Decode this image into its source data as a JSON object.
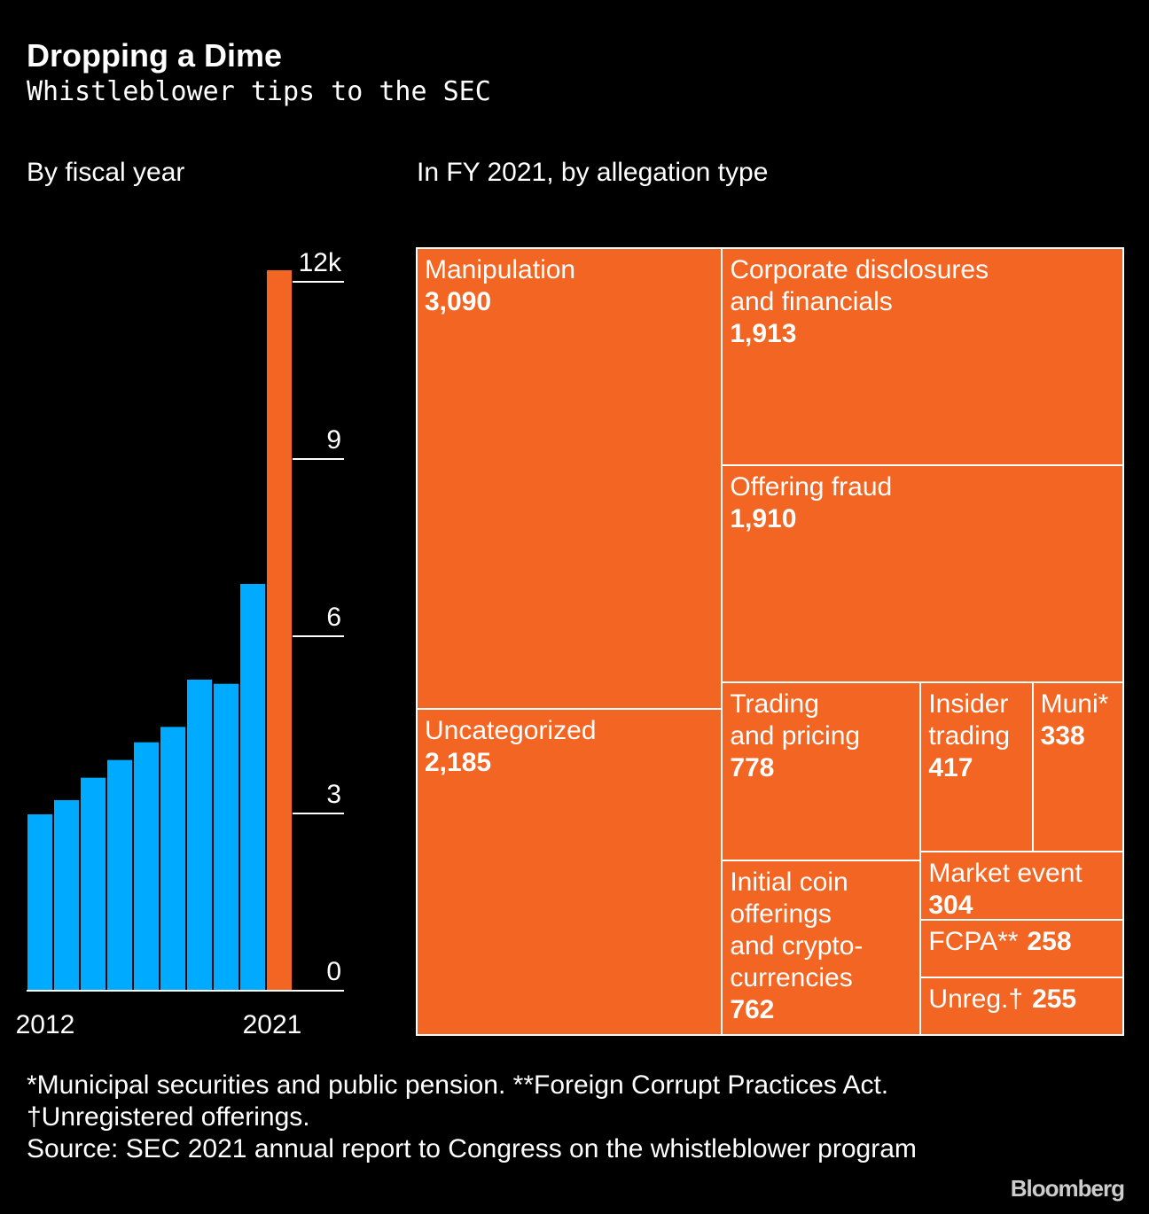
{
  "title": "Dropping a Dime",
  "subtitle": "Whistleblower tips to the SEC",
  "chart_data": [
    {
      "type": "bar",
      "title": "By fiscal year",
      "categories": [
        "2012",
        null,
        null,
        null,
        null,
        null,
        null,
        null,
        null,
        "2021"
      ],
      "values": [
        3.0,
        3.24,
        3.62,
        3.92,
        4.22,
        4.48,
        5.28,
        5.21,
        6.9,
        12.21
      ],
      "colors": [
        "#00aaff",
        "#00aaff",
        "#00aaff",
        "#00aaff",
        "#00aaff",
        "#00aaff",
        "#00aaff",
        "#00aaff",
        "#00aaff",
        "#f26522"
      ],
      "ylim": [
        0,
        12
      ],
      "yticks": [
        0,
        3,
        6,
        9,
        {
          "value": 12,
          "label": "12k"
        }
      ]
    },
    {
      "type": "treemap",
      "title": "In FY 2021, by allegation type",
      "categories": [
        "Manipulation",
        "Uncategorized",
        "Corporate disclosures\nand financials",
        "Offering fraud",
        "Trading\nand pricing",
        "Initial coin\nofferings\nand crypto-\ncurrencies",
        "Insider\ntrading",
        "Muni*",
        "Market event",
        "FCPA**",
        "Unreg.†"
      ],
      "values": [
        3090,
        2185,
        1913,
        1910,
        778,
        762,
        417,
        338,
        304,
        258,
        255
      ],
      "value_labels": [
        "3,090",
        "2,185",
        "1,913",
        "1,910",
        "778",
        "762",
        "417",
        "338",
        "304",
        "258",
        "255"
      ],
      "color": "#f26522"
    }
  ],
  "footnotes": [
    "*Municipal securities and public pension. **Foreign Corrupt Practices Act.",
    "†Unregistered offerings."
  ],
  "source": "Source: SEC 2021 annual report to Congress on the whistleblower program",
  "logo": "Bloomberg"
}
